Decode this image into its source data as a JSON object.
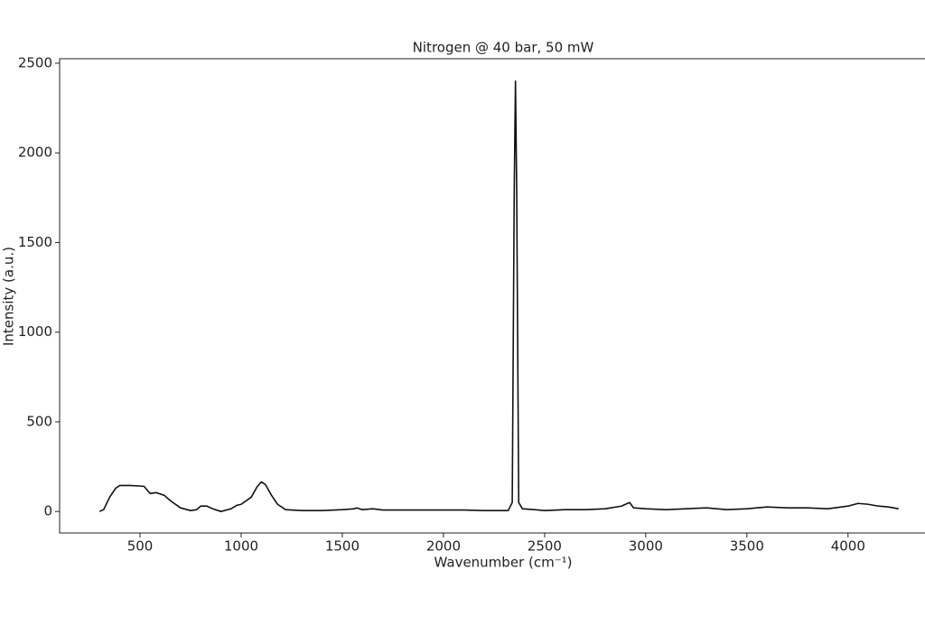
{
  "chart_data": {
    "type": "line",
    "title": "Nitrogen @ 40 bar, 50 mW",
    "x_label": "Wavenumber (cm⁻¹)",
    "y_label": "Intensity (a.u.)",
    "xlim": [
      102.5,
      4447.5
    ],
    "ylim": [
      -120,
      2525
    ],
    "xticks": [
      500,
      1000,
      1500,
      2000,
      2500,
      3000,
      3500,
      4000
    ],
    "yticks": [
      0,
      500,
      1000,
      1500,
      2000,
      2500
    ],
    "series": [
      {
        "color": "#111111",
        "x": [
          300,
          320,
          350,
          380,
          400,
          450,
          500,
          520,
          550,
          580,
          620,
          650,
          700,
          750,
          780,
          800,
          830,
          860,
          900,
          950,
          980,
          1000,
          1050,
          1080,
          1100,
          1120,
          1150,
          1180,
          1220,
          1300,
          1400,
          1500,
          1560,
          1570,
          1600,
          1650,
          1700,
          1800,
          1900,
          2000,
          2100,
          2200,
          2280,
          2320,
          2340,
          2350,
          2356,
          2362,
          2372,
          2390,
          2450,
          2500,
          2600,
          2700,
          2800,
          2880,
          2920,
          2940,
          3000,
          3100,
          3200,
          3300,
          3400,
          3500,
          3600,
          3700,
          3800,
          3900,
          4000,
          4050,
          4100,
          4150,
          4200,
          4250
        ],
        "values": [
          0,
          10,
          80,
          130,
          145,
          145,
          142,
          140,
          100,
          105,
          90,
          60,
          20,
          5,
          10,
          30,
          30,
          15,
          0,
          15,
          35,
          40,
          80,
          140,
          165,
          150,
          90,
          40,
          10,
          5,
          5,
          10,
          15,
          20,
          10,
          15,
          8,
          8,
          8,
          8,
          8,
          5,
          5,
          5,
          50,
          1800,
          2400,
          1800,
          50,
          15,
          10,
          5,
          10,
          10,
          15,
          30,
          50,
          20,
          15,
          10,
          15,
          20,
          10,
          15,
          25,
          20,
          20,
          15,
          30,
          45,
          40,
          30,
          25,
          15
        ]
      }
    ]
  }
}
